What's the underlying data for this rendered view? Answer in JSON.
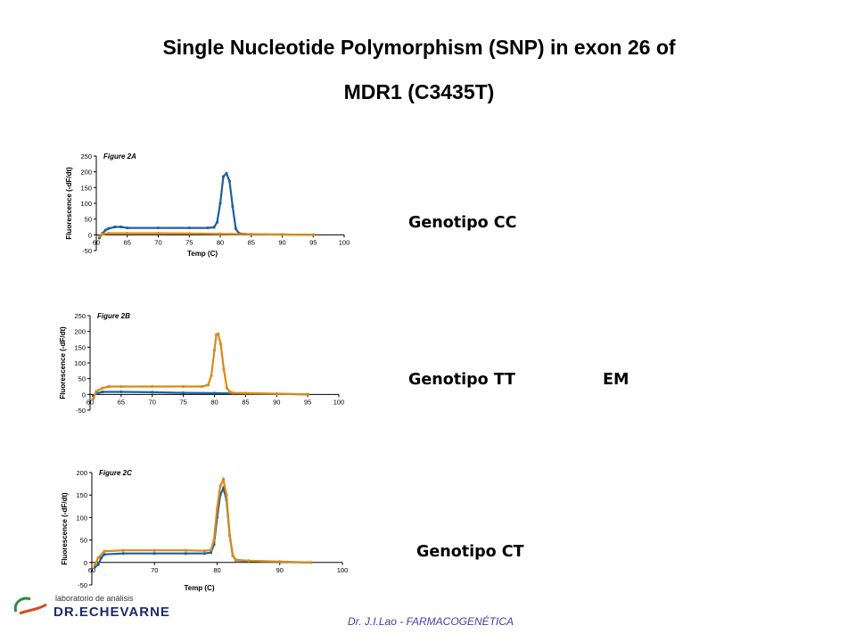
{
  "title": {
    "line1": "Single Nucleotide Polymorphism (SNP) in exon 26 of",
    "line2": "MDR1 (C3435T)"
  },
  "genotypes": {
    "cc": "Genotipo CC",
    "tt": "Genotipo TT",
    "em": "EM",
    "ct": "Genotipo CT"
  },
  "footer": {
    "credit": "Dr. J.I.Lao - FARMACOGENÉTICA",
    "logo_sub": "laboratorio de análisis",
    "logo_name": "DR.ECHEVARNE"
  },
  "colors": {
    "blue": "#1f5f9e",
    "orange": "#d98a16"
  },
  "chart_data": [
    {
      "type": "line",
      "label": "Figure 2A",
      "xlabel": "Temp (C)",
      "ylabel": "Fluorescence (-dF/dt)",
      "xlim": [
        60,
        100
      ],
      "ylim": [
        -50,
        250
      ],
      "xticks": [
        60,
        65,
        70,
        75,
        80,
        85,
        90,
        95,
        100
      ],
      "yticks": [
        -50,
        0,
        50,
        100,
        150,
        200,
        250
      ],
      "series": [
        {
          "color": "#1f5f9e",
          "points": [
            [
              60.5,
              -10
            ],
            [
              61,
              5
            ],
            [
              61.5,
              15
            ],
            [
              62,
              20
            ],
            [
              63,
              25
            ],
            [
              64,
              25
            ],
            [
              65,
              22
            ],
            [
              70,
              22
            ],
            [
              75,
              22
            ],
            [
              78,
              22
            ],
            [
              79,
              24
            ],
            [
              79.5,
              40
            ],
            [
              80,
              100
            ],
            [
              80.5,
              185
            ],
            [
              81,
              195
            ],
            [
              81.5,
              170
            ],
            [
              82,
              90
            ],
            [
              82.5,
              20
            ],
            [
              83,
              5
            ],
            [
              84,
              2
            ],
            [
              85,
              1
            ],
            [
              90,
              1
            ],
            [
              95,
              0
            ]
          ]
        },
        {
          "color": "#d98a16",
          "points": [
            [
              60.5,
              -5
            ],
            [
              61,
              2
            ],
            [
              62,
              5
            ],
            [
              65,
              5
            ],
            [
              70,
              5
            ],
            [
              75,
              4
            ],
            [
              80,
              3
            ],
            [
              85,
              2
            ],
            [
              90,
              1
            ],
            [
              95,
              0
            ]
          ]
        }
      ]
    },
    {
      "type": "line",
      "label": "Figure 2B",
      "xlabel": "",
      "ylabel": "Fluorescence (-dF/dt)",
      "xlim": [
        60,
        100
      ],
      "ylim": [
        -50,
        250
      ],
      "xticks": [
        60,
        65,
        70,
        75,
        80,
        85,
        90,
        95,
        100
      ],
      "yticks": [
        -50,
        0,
        50,
        100,
        150,
        200,
        250
      ],
      "series": [
        {
          "color": "#1f5f9e",
          "points": [
            [
              60.5,
              -5
            ],
            [
              61,
              3
            ],
            [
              62,
              8
            ],
            [
              65,
              8
            ],
            [
              70,
              7
            ],
            [
              75,
              5
            ],
            [
              80,
              4
            ],
            [
              85,
              3
            ],
            [
              90,
              2
            ],
            [
              95,
              0
            ]
          ]
        },
        {
          "color": "#d98a16",
          "points": [
            [
              60.5,
              -15
            ],
            [
              61,
              10
            ],
            [
              62,
              20
            ],
            [
              63,
              25
            ],
            [
              65,
              25
            ],
            [
              70,
              25
            ],
            [
              75,
              25
            ],
            [
              78,
              25
            ],
            [
              79,
              30
            ],
            [
              79.5,
              60
            ],
            [
              80,
              140
            ],
            [
              80.3,
              190
            ],
            [
              80.6,
              192
            ],
            [
              81,
              160
            ],
            [
              81.5,
              80
            ],
            [
              82,
              20
            ],
            [
              82.5,
              8
            ],
            [
              83,
              5
            ],
            [
              85,
              4
            ],
            [
              90,
              2
            ],
            [
              95,
              0
            ]
          ]
        }
      ]
    },
    {
      "type": "line",
      "label": "Figure 2C",
      "xlabel": "Temp (C)",
      "ylabel": "Fluorescence (-dF/dt)",
      "xlim": [
        60,
        100
      ],
      "ylim": [
        -50,
        200
      ],
      "xticks": [
        60,
        70,
        80,
        90,
        100
      ],
      "yticks": [
        -50,
        0,
        50,
        100,
        150,
        200
      ],
      "series": [
        {
          "color": "#1f5f9e",
          "points": [
            [
              60.5,
              -10
            ],
            [
              61,
              -5
            ],
            [
              61.5,
              10
            ],
            [
              62,
              18
            ],
            [
              65,
              20
            ],
            [
              70,
              20
            ],
            [
              75,
              20
            ],
            [
              78,
              20
            ],
            [
              79,
              22
            ],
            [
              79.5,
              40
            ],
            [
              80,
              100
            ],
            [
              80.5,
              150
            ],
            [
              81,
              165
            ],
            [
              81.5,
              140
            ],
            [
              82,
              60
            ],
            [
              82.5,
              15
            ],
            [
              83,
              5
            ],
            [
              85,
              3
            ],
            [
              90,
              1
            ],
            [
              95,
              0
            ]
          ]
        },
        {
          "color": "#d98a16",
          "points": [
            [
              60.5,
              -5
            ],
            [
              61,
              10
            ],
            [
              62,
              25
            ],
            [
              65,
              27
            ],
            [
              70,
              27
            ],
            [
              75,
              27
            ],
            [
              78,
              26
            ],
            [
              79,
              28
            ],
            [
              79.5,
              50
            ],
            [
              80,
              120
            ],
            [
              80.5,
              170
            ],
            [
              81,
              185
            ],
            [
              81.5,
              150
            ],
            [
              82,
              60
            ],
            [
              82.5,
              15
            ],
            [
              83,
              6
            ],
            [
              85,
              4
            ],
            [
              90,
              2
            ],
            [
              95,
              0
            ]
          ]
        }
      ]
    }
  ]
}
